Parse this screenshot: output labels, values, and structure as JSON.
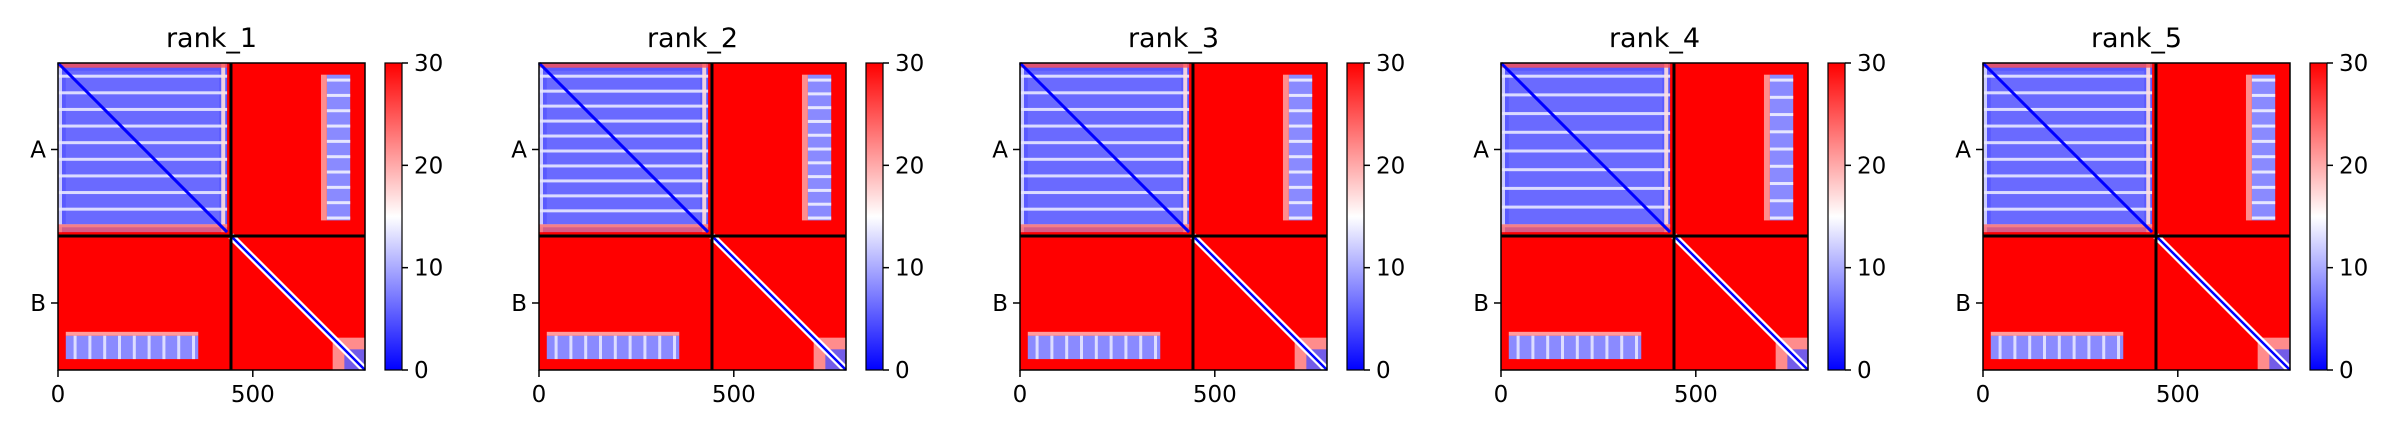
{
  "chart_data": {
    "type": "heatmap",
    "description_kind": "PAE matrices",
    "colormap": [
      "#0000ff",
      "#ffffff",
      "#ff0000"
    ],
    "vmin": 0,
    "vmax": 30,
    "colorbar_ticks": [
      "0",
      "10",
      "20",
      "30"
    ],
    "x_ticks": [
      {
        "value": 0,
        "label": "0"
      },
      {
        "value": 500,
        "label": "500"
      }
    ],
    "axis_max": 788,
    "chain_boundary": 444,
    "chain_labels": [
      {
        "label": "A",
        "center": 222
      },
      {
        "label": "B",
        "center": 616
      }
    ],
    "panels": [
      {
        "title": "rank_1",
        "stripes": 10
      },
      {
        "title": "rank_2",
        "stripes": 11
      },
      {
        "title": "rank_3",
        "stripes": 10
      },
      {
        "title": "rank_4",
        "stripes": 9
      },
      {
        "title": "rank_5",
        "stripes": 10
      }
    ]
  }
}
